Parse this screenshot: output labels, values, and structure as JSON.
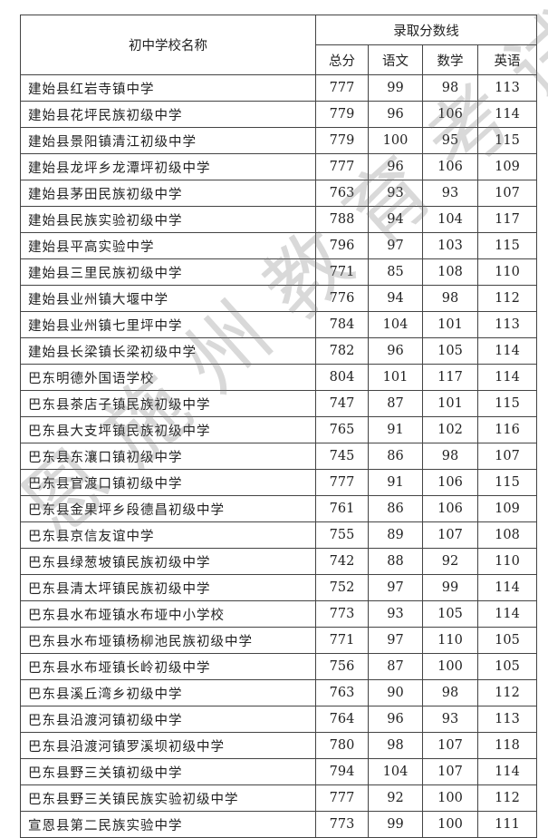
{
  "header": {
    "name_col": "初中学校名称",
    "group": "录取分数线",
    "cols": [
      "总分",
      "语文",
      "数学",
      "英语"
    ]
  },
  "watermark": "恩施州教育考试院",
  "rows": [
    [
      "建始县红岩寺镇中学",
      "777",
      "99",
      "98",
      "113"
    ],
    [
      "建始县花坪民族初级中学",
      "779",
      "96",
      "106",
      "114"
    ],
    [
      "建始县景阳镇清江初级中学",
      "779",
      "100",
      "95",
      "115"
    ],
    [
      "建始县龙坪乡龙潭坪初级中学",
      "777",
      "96",
      "106",
      "109"
    ],
    [
      "建始县茅田民族初级中学",
      "763",
      "93",
      "93",
      "107"
    ],
    [
      "建始县民族实验初级中学",
      "788",
      "94",
      "104",
      "117"
    ],
    [
      "建始县平高实验中学",
      "796",
      "97",
      "103",
      "115"
    ],
    [
      "建始县三里民族初级中学",
      "771",
      "85",
      "108",
      "110"
    ],
    [
      "建始县业州镇大堰中学",
      "776",
      "94",
      "98",
      "112"
    ],
    [
      "建始县业州镇七里坪中学",
      "784",
      "104",
      "101",
      "113"
    ],
    [
      "建始县长梁镇长梁初级中学",
      "782",
      "96",
      "105",
      "114"
    ],
    [
      "巴东明德外国语学校",
      "804",
      "101",
      "117",
      "114"
    ],
    [
      "巴东县茶店子镇民族初级中学",
      "747",
      "87",
      "101",
      "115"
    ],
    [
      "巴东县大支坪镇民族初级中学",
      "765",
      "91",
      "102",
      "116"
    ],
    [
      "巴东县东瀼口镇初级中学",
      "745",
      "86",
      "98",
      "107"
    ],
    [
      "巴东县官渡口镇初级中学",
      "777",
      "91",
      "106",
      "115"
    ],
    [
      "巴东县金果坪乡段德昌初级中学",
      "761",
      "86",
      "106",
      "109"
    ],
    [
      "巴东县京信友谊中学",
      "755",
      "89",
      "107",
      "108"
    ],
    [
      "巴东县绿葱坡镇民族初级中学",
      "742",
      "88",
      "92",
      "110"
    ],
    [
      "巴东县清太坪镇民族初级中学",
      "752",
      "97",
      "99",
      "114"
    ],
    [
      "巴东县水布垭镇水布垭中小学校",
      "773",
      "93",
      "105",
      "114"
    ],
    [
      "巴东县水布垭镇杨柳池民族初级中学",
      "771",
      "97",
      "110",
      "105"
    ],
    [
      "巴东县水布垭镇长岭初级中学",
      "756",
      "87",
      "100",
      "105"
    ],
    [
      "巴东县溪丘湾乡初级中学",
      "763",
      "90",
      "98",
      "112"
    ],
    [
      "巴东县沿渡河镇初级中学",
      "764",
      "96",
      "93",
      "113"
    ],
    [
      "巴东县沿渡河镇罗溪坝初级中学",
      "780",
      "98",
      "107",
      "118"
    ],
    [
      "巴东县野三关镇初级中学",
      "794",
      "104",
      "107",
      "114"
    ],
    [
      "巴东县野三关镇民族实验初级中学",
      "777",
      "92",
      "100",
      "112"
    ],
    [
      "宣恩县第二民族实验中学",
      "773",
      "99",
      "100",
      "111"
    ]
  ]
}
